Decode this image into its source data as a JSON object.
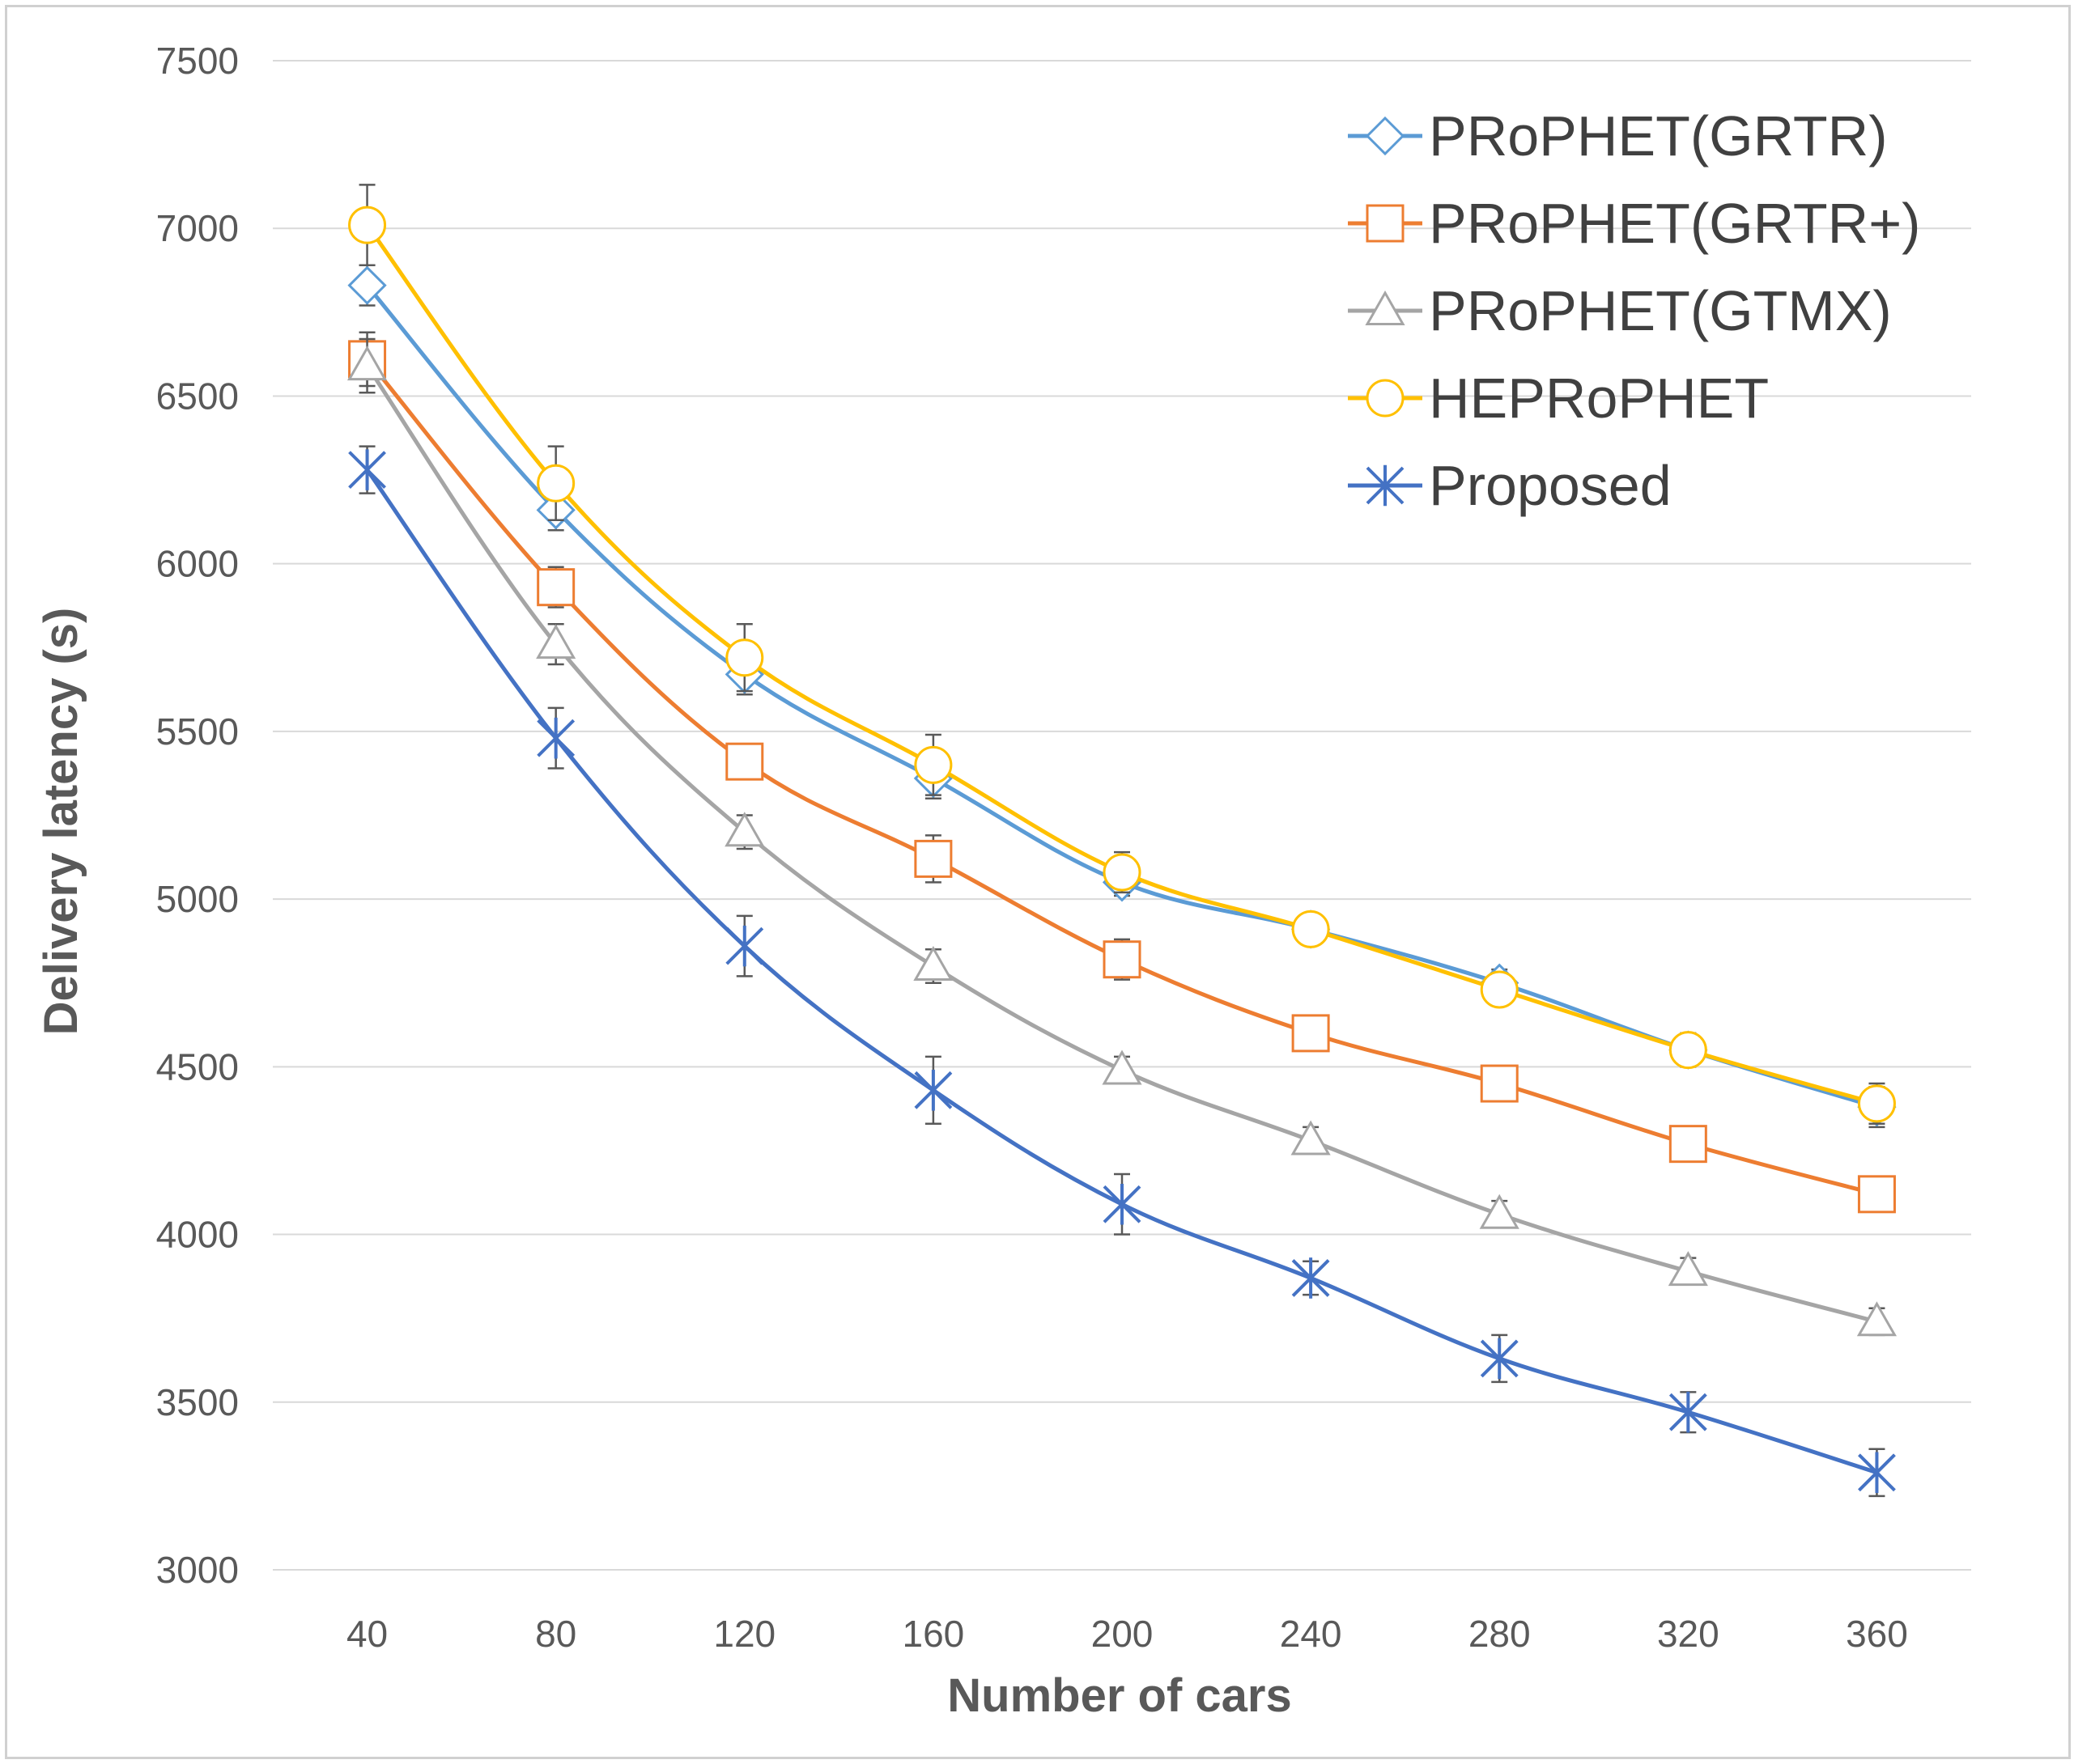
{
  "chart_data": {
    "type": "line",
    "title": "",
    "xlabel": "Number of cars",
    "ylabel": "Delivery latency (s)",
    "categories": [
      "40",
      "80",
      "120",
      "160",
      "200",
      "240",
      "280",
      "320",
      "360"
    ],
    "ylim": [
      3000,
      7500
    ],
    "yticks": [
      3000,
      3500,
      4000,
      4500,
      5000,
      5500,
      6000,
      6500,
      7000,
      7500
    ],
    "grid": "horizontal",
    "legend_position": "top-right",
    "series": [
      {
        "name": "PRoPHET(GRTR)",
        "color": "#5b9bd5",
        "marker": "diamond",
        "values": [
          6830,
          6160,
          5670,
          5360,
          5050,
          4910,
          4750,
          4550,
          4380
        ],
        "errors": [
          60,
          60,
          60,
          60,
          40,
          30,
          40,
          50,
          60
        ]
      },
      {
        "name": "PRoPHET(GRTR+)",
        "color": "#ed7d31",
        "marker": "square",
        "values": [
          6610,
          5930,
          5410,
          5120,
          4820,
          4600,
          4450,
          4270,
          4120
        ],
        "errors": [
          80,
          60,
          50,
          70,
          60,
          40,
          50,
          50,
          50
        ]
      },
      {
        "name": "PRoPHET(GTMX)",
        "color": "#a5a5a5",
        "marker": "triangle",
        "values": [
          6590,
          5760,
          5200,
          4800,
          4490,
          4280,
          4060,
          3890,
          3740
        ],
        "errors": [
          80,
          60,
          50,
          50,
          40,
          40,
          40,
          40,
          40
        ]
      },
      {
        "name": "HEPRoPHET",
        "color": "#ffc000",
        "marker": "circle",
        "values": [
          7010,
          6240,
          5720,
          5400,
          5080,
          4910,
          4730,
          4550,
          4390
        ],
        "errors": [
          120,
          110,
          100,
          90,
          60,
          40,
          40,
          40,
          60
        ]
      },
      {
        "name": "Proposed",
        "color": "#4472c4",
        "marker": "star",
        "values": [
          6280,
          5480,
          4860,
          4430,
          4090,
          3870,
          3630,
          3470,
          3290
        ],
        "errors": [
          70,
          90,
          90,
          100,
          90,
          50,
          70,
          60,
          70
        ]
      }
    ]
  }
}
